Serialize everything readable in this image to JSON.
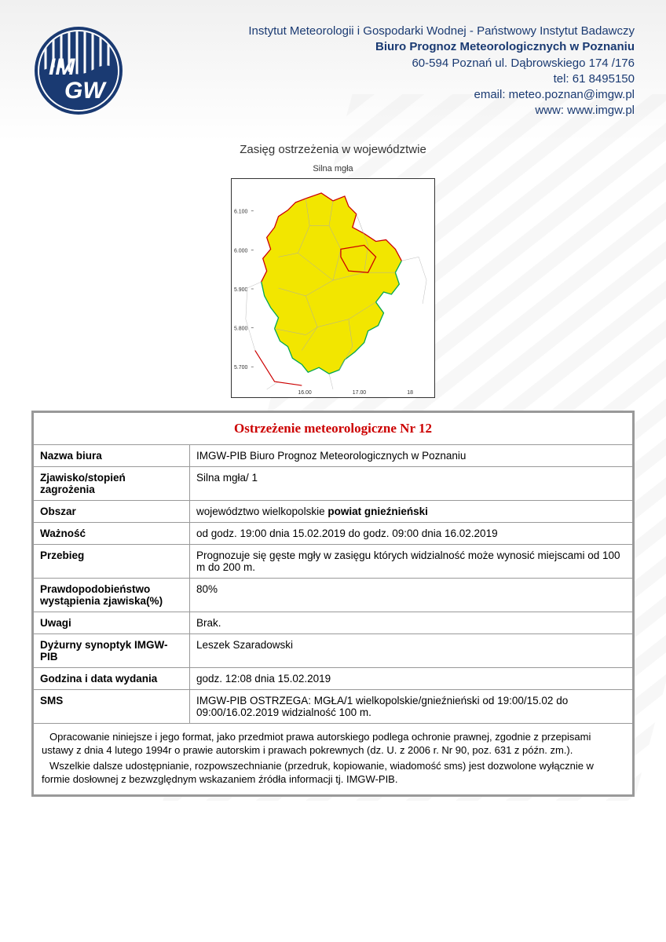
{
  "header": {
    "institute": "Instytut Meteorologii i Gospodarki Wodnej - Państwowy Instytut Badawczy",
    "office_bold": "Biuro Prognoz Meteorologicznych w Poznaniu",
    "address": "60-594 Poznań ul. Dąbrowskiego 174 /176",
    "tel": "tel: 61 8495150",
    "email": "email: meteo.poznan@imgw.pl",
    "www": "www: www.imgw.pl",
    "logo_text_top": "IM",
    "logo_text_bottom": "GW"
  },
  "map": {
    "section_title": "Zasięg ostrzeżenia w województwie",
    "subtitle": "Silna mgła",
    "fill_color": "#f2e600",
    "border_color_red": "#cc0000",
    "border_color_green": "#00a651",
    "background": "#ffffff",
    "axis_color": "#666666",
    "title_fontsize": 11,
    "xticks": [
      "16.00",
      "17.00",
      "18"
    ],
    "yticks": [
      "6.100",
      "6.000",
      "5.900",
      "5.800",
      "5.700"
    ]
  },
  "table": {
    "title": "Ostrzeżenie meteorologiczne Nr 12",
    "title_color": "#cc0000",
    "rows": [
      {
        "label": "Nazwa biura",
        "value_prefix": "IMGW-PIB Biuro Prognoz Meteorologicznych w Poznaniu",
        "value_bold": "",
        "value_suffix": ""
      },
      {
        "label": "Zjawisko/stopień zagrożenia",
        "value_prefix": "Silna mgła/ 1",
        "value_bold": "",
        "value_suffix": ""
      },
      {
        "label": "Obszar",
        "value_prefix": "województwo wielkopolskie ",
        "value_bold": "powiat gnieźnieński",
        "value_suffix": ""
      },
      {
        "label": "Ważność",
        "value_prefix": "od godz. 19:00 dnia 15.02.2019 do godz. 09:00 dnia 16.02.2019",
        "value_bold": "",
        "value_suffix": ""
      },
      {
        "label": "Przebieg",
        "value_prefix": "Prognozuje się gęste mgły w zasięgu których widzialność może wynosić miejscami od 100 m do 200 m.",
        "value_bold": "",
        "value_suffix": ""
      },
      {
        "label": "Prawdopodobieństwo wystąpienia zjawiska(%)",
        "value_prefix": "80%",
        "value_bold": "",
        "value_suffix": ""
      },
      {
        "label": "Uwagi",
        "value_prefix": "Brak.",
        "value_bold": "",
        "value_suffix": ""
      },
      {
        "label": "Dyżurny synoptyk IMGW-PIB",
        "value_prefix": "Leszek Szaradowski",
        "value_bold": "",
        "value_suffix": ""
      },
      {
        "label": "Godzina i data wydania",
        "value_prefix": "godz. 12:08 dnia 15.02.2019",
        "value_bold": "",
        "value_suffix": ""
      },
      {
        "label": "SMS",
        "value_prefix": "IMGW-PIB OSTRZEGA: MGŁA/1 wielkopolskie/gnieźnieński od 19:00/15.02 do 09:00/16.02.2019 widzialność 100 m.",
        "value_bold": "",
        "value_suffix": ""
      }
    ],
    "footer_p1": "Opracowanie niniejsze i jego format, jako przedmiot prawa autorskiego podlega ochronie prawnej, zgodnie z przepisami ustawy z dnia 4 lutego 1994r o prawie autorskim i prawach pokrewnych (dz. U. z 2006 r. Nr 90, poz. 631 z późn. zm.).",
    "footer_p2": "Wszelkie dalsze udostępnianie, rozpowszechnianie (przedruk, kopiowanie, wiadomość sms) jest dozwolone wyłącznie w formie dosłownej z bezwzględnym wskazaniem źródła informacji tj. IMGW-PIB."
  }
}
